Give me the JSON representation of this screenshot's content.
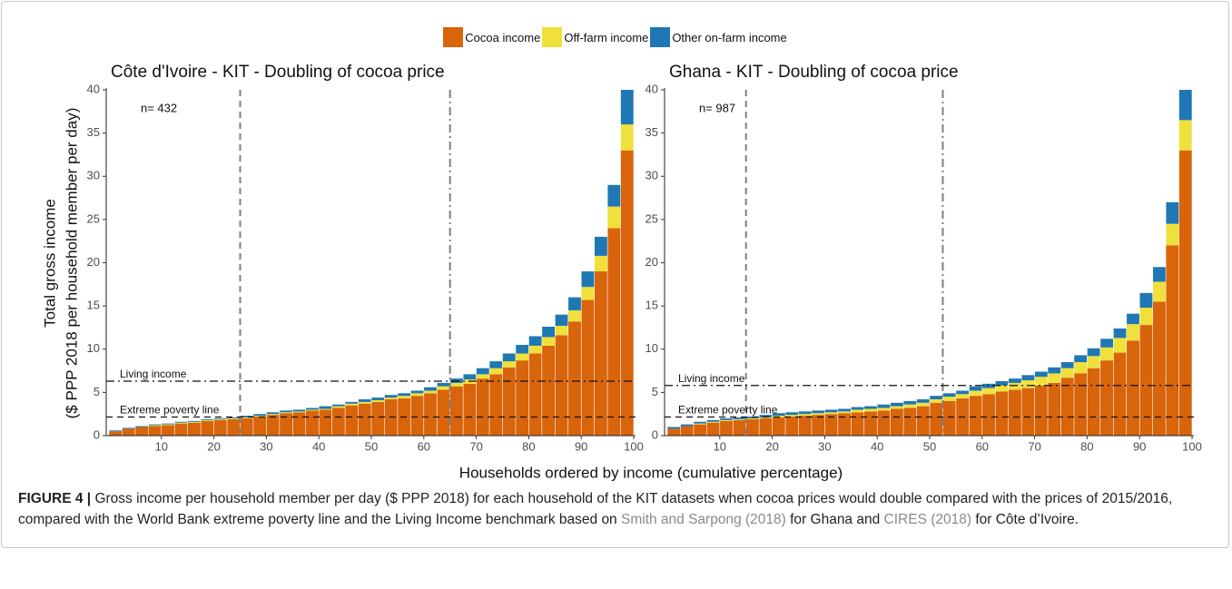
{
  "chart_data": [
    {
      "type": "bar",
      "stacked": true,
      "title": "Côte d'Ivoire - KIT - Doubling of cocoa price",
      "xlabel": "Households ordered by income (cumulative percentage)",
      "ylabel": [
        "Total gross income",
        "($ PPP 2018 per household member per day)"
      ],
      "annotation": "n= 432",
      "x": [
        2.5,
        5,
        7.5,
        10,
        12.5,
        15,
        17.5,
        20,
        22.5,
        25,
        27.5,
        30,
        32.5,
        35,
        37.5,
        40,
        42.5,
        45,
        47.5,
        50,
        52.5,
        55,
        57.5,
        60,
        62.5,
        65,
        67.5,
        70,
        72.5,
        75,
        77.5,
        80,
        82.5,
        85,
        87.5,
        90,
        92.5,
        95,
        97.5,
        100
      ],
      "series": [
        {
          "name": "Cocoa income",
          "color": "#d8640c",
          "values": [
            0.5,
            0.8,
            1.0,
            1.1,
            1.2,
            1.4,
            1.5,
            1.7,
            1.8,
            1.9,
            2.0,
            2.2,
            2.4,
            2.6,
            2.7,
            2.9,
            3.0,
            3.2,
            3.5,
            3.7,
            3.9,
            4.2,
            4.3,
            4.6,
            4.9,
            5.3,
            5.7,
            6.0,
            6.6,
            7.1,
            7.9,
            8.7,
            9.5,
            10.4,
            11.6,
            13.2,
            15.7,
            19.0,
            24.0,
            33.0
          ]
        },
        {
          "name": "Off-farm income",
          "color": "#efe03c",
          "values": [
            0.0,
            0.0,
            0.0,
            0.1,
            0.1,
            0.1,
            0.1,
            0.1,
            0.1,
            0.1,
            0.1,
            0.1,
            0.1,
            0.1,
            0.1,
            0.1,
            0.1,
            0.2,
            0.2,
            0.2,
            0.2,
            0.2,
            0.3,
            0.3,
            0.3,
            0.4,
            0.4,
            0.5,
            0.5,
            0.7,
            0.7,
            0.8,
            0.9,
            1.0,
            1.1,
            1.3,
            1.5,
            1.8,
            2.5,
            3.0
          ]
        },
        {
          "name": "Other on-farm income",
          "color": "#1f78b4",
          "values": [
            0.1,
            0.1,
            0.1,
            0.1,
            0.1,
            0.1,
            0.1,
            0.1,
            0.1,
            0.1,
            0.2,
            0.2,
            0.2,
            0.2,
            0.2,
            0.2,
            0.3,
            0.2,
            0.2,
            0.3,
            0.3,
            0.3,
            0.3,
            0.3,
            0.4,
            0.4,
            0.5,
            0.6,
            0.7,
            0.8,
            0.9,
            1.0,
            1.1,
            1.2,
            1.3,
            1.5,
            1.8,
            2.2,
            2.5,
            4.0
          ]
        }
      ],
      "xlim": [
        0,
        100
      ],
      "ylim": [
        0,
        40
      ],
      "xticks": [
        10,
        20,
        30,
        40,
        50,
        60,
        70,
        80,
        90,
        100
      ],
      "yticks": [
        0,
        5,
        10,
        15,
        20,
        25,
        30,
        35,
        40
      ],
      "hlines": [
        {
          "y": 6.3,
          "label": "Living income",
          "style": "dashdot"
        },
        {
          "y": 2.15,
          "label": "Extreme poverty line",
          "style": "dashed"
        }
      ],
      "vlines": [
        {
          "x": 25,
          "style": "dashed"
        },
        {
          "x": 65,
          "style": "dashdot"
        }
      ]
    },
    {
      "type": "bar",
      "stacked": true,
      "title": "Ghana - KIT - Doubling of cocoa price",
      "annotation": "n= 987",
      "x": [
        2.5,
        5,
        7.5,
        10,
        12.5,
        15,
        17.5,
        20,
        22.5,
        25,
        27.5,
        30,
        32.5,
        35,
        37.5,
        40,
        42.5,
        45,
        47.5,
        50,
        52.5,
        55,
        57.5,
        60,
        62.5,
        65,
        67.5,
        70,
        72.5,
        75,
        77.5,
        80,
        82.5,
        85,
        87.5,
        90,
        92.5,
        95,
        97.5,
        100
      ],
      "series": [
        {
          "color": "#d8640c",
          "values": [
            0.8,
            1.1,
            1.3,
            1.5,
            1.7,
            1.8,
            1.9,
            2.0,
            2.1,
            2.2,
            2.3,
            2.4,
            2.5,
            2.6,
            2.7,
            2.8,
            2.9,
            3.1,
            3.2,
            3.4,
            3.8,
            4.0,
            4.3,
            4.6,
            4.8,
            5.1,
            5.3,
            5.5,
            5.8,
            6.1,
            6.7,
            7.2,
            7.8,
            8.7,
            9.6,
            11.0,
            12.8,
            15.5,
            22.0,
            33.0
          ]
        },
        {
          "color": "#efe03c",
          "values": [
            0.0,
            0.0,
            0.1,
            0.1,
            0.1,
            0.1,
            0.1,
            0.1,
            0.2,
            0.2,
            0.2,
            0.2,
            0.2,
            0.2,
            0.3,
            0.3,
            0.3,
            0.3,
            0.4,
            0.4,
            0.4,
            0.5,
            0.5,
            0.6,
            0.7,
            0.7,
            0.8,
            0.9,
            1.0,
            1.1,
            1.1,
            1.3,
            1.4,
            1.5,
            1.7,
            1.9,
            2.0,
            2.3,
            2.5,
            3.5
          ]
        },
        {
          "color": "#1f78b4",
          "values": [
            0.2,
            0.2,
            0.2,
            0.2,
            0.2,
            0.2,
            0.2,
            0.3,
            0.3,
            0.3,
            0.3,
            0.3,
            0.3,
            0.3,
            0.3,
            0.3,
            0.4,
            0.4,
            0.4,
            0.4,
            0.4,
            0.4,
            0.4,
            0.5,
            0.5,
            0.5,
            0.5,
            0.6,
            0.6,
            0.7,
            0.7,
            0.8,
            0.9,
            1.0,
            1.1,
            1.2,
            1.7,
            1.7,
            2.5,
            3.5
          ]
        }
      ],
      "xlim": [
        0,
        100
      ],
      "ylim": [
        0,
        40
      ],
      "xticks": [
        10,
        20,
        30,
        40,
        50,
        60,
        70,
        80,
        90,
        100
      ],
      "yticks": [
        0,
        5,
        10,
        15,
        20,
        25,
        30,
        35,
        40
      ],
      "hlines": [
        {
          "y": 5.8,
          "label": "Living income",
          "style": "dashdot"
        },
        {
          "y": 2.15,
          "label": "Extreme poverty line",
          "style": "dashed"
        }
      ],
      "vlines": [
        {
          "x": 15,
          "style": "dashed"
        },
        {
          "x": 52.5,
          "style": "dashdot"
        }
      ]
    }
  ],
  "caption": {
    "label": "FIGURE 4 |",
    "text_1": "Gross income per household member per day ($ PPP 2018) for each household of the KIT datasets when cocoa prices would double compared with the prices of 2015/2016, compared with the World Bank extreme poverty line and the Living Income benchmark based on",
    "cite_1": "Smith and Sarpong (2018)",
    "text_2": "for Ghana and",
    "cite_2": "CIRES (2018)",
    "text_3": "for Côte d’Ivoire."
  }
}
